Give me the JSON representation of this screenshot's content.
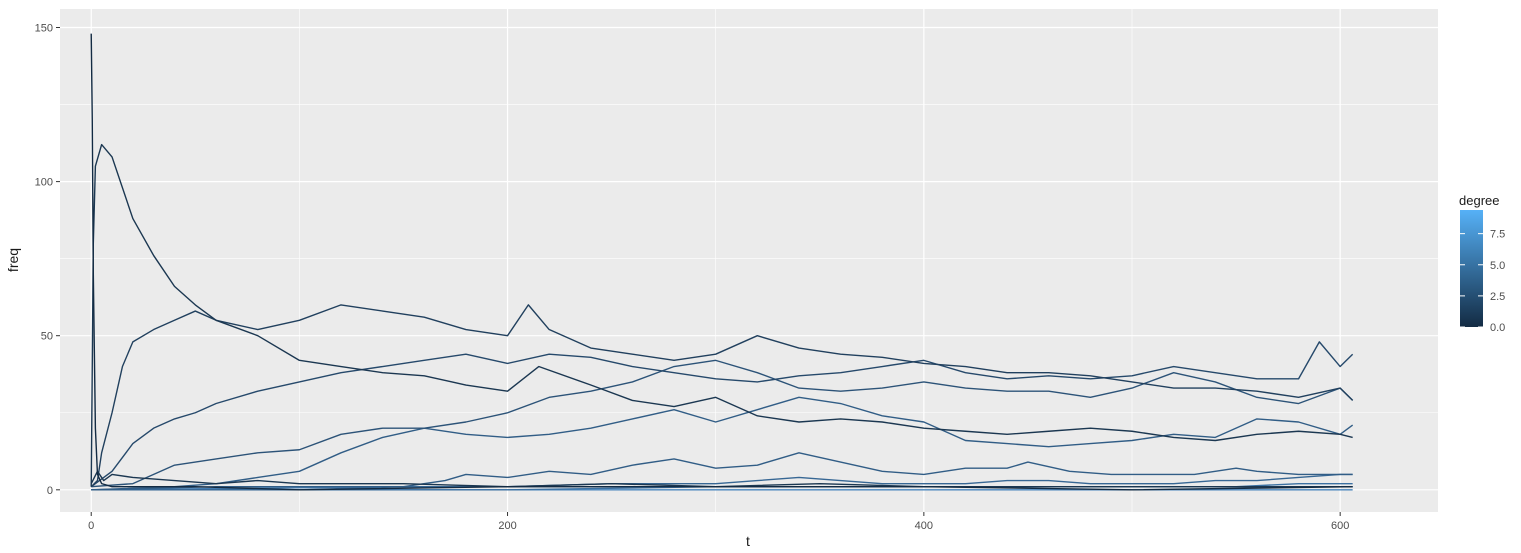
{
  "chart_data": {
    "type": "line",
    "title": "",
    "xlabel": "t",
    "ylabel": "freq",
    "xlim": [
      -15,
      647
    ],
    "ylim": [
      -7.2,
      156
    ],
    "xticks": [
      0,
      200,
      400,
      600
    ],
    "yticks": [
      0,
      50,
      100,
      150
    ],
    "grid": true,
    "legend": {
      "title": "degree",
      "position": "right",
      "type": "colorbar",
      "range": [
        0,
        9.4
      ],
      "ticks": [
        "0.0",
        "2.5",
        "5.0",
        "7.5"
      ],
      "tick_values": [
        0,
        2.5,
        5,
        7.5
      ],
      "low_color": "#132B43",
      "high_color": "#56B1F7"
    },
    "background_color": "#EBEBEB",
    "grid_color": "#FFFFFF",
    "series": [
      {
        "degree": 0,
        "color": "#132B43",
        "values": [
          [
            0,
            148
          ],
          [
            0.5,
            120
          ],
          [
            1,
            70
          ],
          [
            2,
            20
          ],
          [
            3,
            5
          ],
          [
            5,
            2
          ],
          [
            10,
            1
          ],
          [
            50,
            1
          ],
          [
            100,
            0
          ],
          [
            200,
            1
          ],
          [
            300,
            1
          ],
          [
            400,
            1
          ],
          [
            500,
            0
          ],
          [
            606,
            1
          ]
        ]
      },
      {
        "degree": 1,
        "color": "#1B3751",
        "values": [
          [
            0,
            1
          ],
          [
            1,
            80
          ],
          [
            2,
            105
          ],
          [
            5,
            112
          ],
          [
            10,
            108
          ],
          [
            20,
            88
          ],
          [
            30,
            76
          ],
          [
            40,
            66
          ],
          [
            50,
            60
          ],
          [
            60,
            55
          ],
          [
            80,
            50
          ],
          [
            100,
            42
          ],
          [
            120,
            40
          ],
          [
            140,
            38
          ],
          [
            160,
            37
          ],
          [
            180,
            34
          ],
          [
            200,
            32
          ],
          [
            215,
            40
          ],
          [
            240,
            34
          ],
          [
            260,
            29
          ],
          [
            280,
            27
          ],
          [
            300,
            30
          ],
          [
            320,
            24
          ],
          [
            340,
            22
          ],
          [
            360,
            23
          ],
          [
            380,
            22
          ],
          [
            400,
            20
          ],
          [
            420,
            19
          ],
          [
            440,
            18
          ],
          [
            460,
            19
          ],
          [
            480,
            20
          ],
          [
            500,
            19
          ],
          [
            520,
            17
          ],
          [
            540,
            16
          ],
          [
            560,
            18
          ],
          [
            580,
            19
          ],
          [
            600,
            18
          ],
          [
            606,
            17
          ]
        ]
      },
      {
        "degree": 1,
        "color": "#1B3751",
        "values": [
          [
            0,
            2
          ],
          [
            3,
            6
          ],
          [
            6,
            3
          ],
          [
            10,
            5
          ],
          [
            20,
            4
          ],
          [
            40,
            3
          ],
          [
            60,
            2
          ],
          [
            80,
            3
          ],
          [
            100,
            2
          ],
          [
            150,
            2
          ],
          [
            200,
            1
          ],
          [
            250,
            2
          ],
          [
            300,
            1
          ],
          [
            350,
            2
          ],
          [
            400,
            1
          ],
          [
            500,
            1
          ],
          [
            606,
            1
          ]
        ]
      },
      {
        "degree": 2,
        "color": "#21405E",
        "values": [
          [
            0,
            1
          ],
          [
            3,
            3
          ],
          [
            5,
            12
          ],
          [
            10,
            25
          ],
          [
            15,
            40
          ],
          [
            20,
            48
          ],
          [
            30,
            52
          ],
          [
            40,
            55
          ],
          [
            50,
            58
          ],
          [
            60,
            55
          ],
          [
            80,
            52
          ],
          [
            100,
            55
          ],
          [
            120,
            60
          ],
          [
            140,
            58
          ],
          [
            160,
            56
          ],
          [
            180,
            52
          ],
          [
            200,
            50
          ],
          [
            210,
            60
          ],
          [
            220,
            52
          ],
          [
            240,
            46
          ],
          [
            260,
            44
          ],
          [
            280,
            42
          ],
          [
            300,
            44
          ],
          [
            320,
            50
          ],
          [
            340,
            46
          ],
          [
            360,
            44
          ],
          [
            380,
            43
          ],
          [
            400,
            41
          ],
          [
            420,
            40
          ],
          [
            440,
            38
          ],
          [
            460,
            38
          ],
          [
            480,
            37
          ],
          [
            500,
            35
          ],
          [
            520,
            33
          ],
          [
            540,
            33
          ],
          [
            560,
            32
          ],
          [
            580,
            30
          ],
          [
            600,
            33
          ],
          [
            606,
            29
          ]
        ]
      },
      {
        "degree": 3,
        "color": "#26496B",
        "values": [
          [
            0,
            1
          ],
          [
            10,
            6
          ],
          [
            20,
            15
          ],
          [
            30,
            20
          ],
          [
            40,
            23
          ],
          [
            50,
            25
          ],
          [
            60,
            28
          ],
          [
            80,
            32
          ],
          [
            100,
            35
          ],
          [
            120,
            38
          ],
          [
            140,
            40
          ],
          [
            160,
            42
          ],
          [
            180,
            44
          ],
          [
            200,
            41
          ],
          [
            220,
            44
          ],
          [
            240,
            43
          ],
          [
            260,
            40
          ],
          [
            280,
            38
          ],
          [
            300,
            36
          ],
          [
            320,
            35
          ],
          [
            340,
            37
          ],
          [
            360,
            38
          ],
          [
            380,
            40
          ],
          [
            400,
            42
          ],
          [
            420,
            38
          ],
          [
            440,
            36
          ],
          [
            460,
            37
          ],
          [
            480,
            36
          ],
          [
            500,
            37
          ],
          [
            520,
            40
          ],
          [
            540,
            38
          ],
          [
            560,
            36
          ],
          [
            580,
            36
          ],
          [
            590,
            48
          ],
          [
            600,
            40
          ],
          [
            606,
            44
          ]
        ]
      },
      {
        "degree": 4,
        "color": "#2C5378",
        "values": [
          [
            0,
            1
          ],
          [
            20,
            2
          ],
          [
            30,
            5
          ],
          [
            40,
            8
          ],
          [
            60,
            10
          ],
          [
            80,
            12
          ],
          [
            100,
            13
          ],
          [
            120,
            18
          ],
          [
            140,
            20
          ],
          [
            160,
            20
          ],
          [
            180,
            22
          ],
          [
            200,
            25
          ],
          [
            220,
            30
          ],
          [
            240,
            32
          ],
          [
            260,
            35
          ],
          [
            280,
            40
          ],
          [
            300,
            42
          ],
          [
            320,
            38
          ],
          [
            340,
            33
          ],
          [
            360,
            32
          ],
          [
            380,
            33
          ],
          [
            400,
            35
          ],
          [
            420,
            33
          ],
          [
            440,
            32
          ],
          [
            460,
            32
          ],
          [
            480,
            30
          ],
          [
            500,
            33
          ],
          [
            520,
            38
          ],
          [
            540,
            35
          ],
          [
            560,
            30
          ],
          [
            580,
            28
          ],
          [
            600,
            33
          ],
          [
            606,
            29
          ]
        ]
      },
      {
        "degree": 5,
        "color": "#315D86",
        "values": [
          [
            0,
            0
          ],
          [
            40,
            1
          ],
          [
            60,
            2
          ],
          [
            80,
            4
          ],
          [
            100,
            6
          ],
          [
            120,
            12
          ],
          [
            140,
            17
          ],
          [
            160,
            20
          ],
          [
            180,
            18
          ],
          [
            200,
            17
          ],
          [
            220,
            18
          ],
          [
            240,
            20
          ],
          [
            260,
            23
          ],
          [
            280,
            26
          ],
          [
            300,
            22
          ],
          [
            320,
            26
          ],
          [
            340,
            30
          ],
          [
            360,
            28
          ],
          [
            380,
            24
          ],
          [
            400,
            22
          ],
          [
            420,
            16
          ],
          [
            440,
            15
          ],
          [
            460,
            14
          ],
          [
            480,
            15
          ],
          [
            500,
            16
          ],
          [
            520,
            18
          ],
          [
            540,
            17
          ],
          [
            560,
            23
          ],
          [
            580,
            22
          ],
          [
            600,
            18
          ],
          [
            606,
            21
          ]
        ]
      },
      {
        "degree": 5,
        "color": "#315D86",
        "values": [
          [
            0,
            0
          ],
          [
            60,
            1
          ],
          [
            100,
            1
          ],
          [
            150,
            1
          ],
          [
            170,
            3
          ],
          [
            180,
            5
          ],
          [
            200,
            4
          ],
          [
            220,
            6
          ],
          [
            240,
            5
          ],
          [
            260,
            8
          ],
          [
            280,
            10
          ],
          [
            300,
            7
          ],
          [
            320,
            8
          ],
          [
            340,
            12
          ],
          [
            360,
            9
          ],
          [
            380,
            6
          ],
          [
            400,
            5
          ],
          [
            420,
            7
          ],
          [
            440,
            7
          ],
          [
            450,
            9
          ],
          [
            470,
            6
          ],
          [
            490,
            5
          ],
          [
            510,
            5
          ],
          [
            530,
            5
          ],
          [
            550,
            7
          ],
          [
            560,
            6
          ],
          [
            580,
            5
          ],
          [
            600,
            5
          ],
          [
            606,
            5
          ]
        ]
      },
      {
        "degree": 6,
        "color": "#376794",
        "values": [
          [
            0,
            0
          ],
          [
            100,
            0
          ],
          [
            150,
            1
          ],
          [
            200,
            1
          ],
          [
            250,
            2
          ],
          [
            300,
            2
          ],
          [
            320,
            3
          ],
          [
            340,
            4
          ],
          [
            360,
            3
          ],
          [
            380,
            2
          ],
          [
            400,
            2
          ],
          [
            420,
            2
          ],
          [
            440,
            3
          ],
          [
            460,
            3
          ],
          [
            480,
            2
          ],
          [
            500,
            2
          ],
          [
            520,
            2
          ],
          [
            540,
            3
          ],
          [
            560,
            3
          ],
          [
            580,
            4
          ],
          [
            600,
            5
          ],
          [
            606,
            5
          ]
        ]
      },
      {
        "degree": 7,
        "color": "#3C71A2",
        "values": [
          [
            0,
            0
          ],
          [
            200,
            0
          ],
          [
            300,
            1
          ],
          [
            360,
            1
          ],
          [
            400,
            1
          ],
          [
            450,
            1
          ],
          [
            500,
            1
          ],
          [
            550,
            1
          ],
          [
            580,
            2
          ],
          [
            606,
            2
          ]
        ]
      },
      {
        "degree": 8,
        "color": "#427BB0",
        "values": [
          [
            0,
            0
          ],
          [
            150,
            1
          ],
          [
            250,
            1
          ],
          [
            350,
            1
          ],
          [
            420,
            1
          ],
          [
            470,
            1
          ],
          [
            520,
            1
          ],
          [
            560,
            1
          ],
          [
            606,
            1
          ]
        ]
      },
      {
        "degree": 9,
        "color": "#4886BE",
        "values": [
          [
            0,
            0
          ],
          [
            100,
            0
          ],
          [
            200,
            0
          ],
          [
            300,
            0
          ],
          [
            400,
            0
          ],
          [
            500,
            0
          ],
          [
            606,
            0
          ]
        ]
      }
    ]
  }
}
